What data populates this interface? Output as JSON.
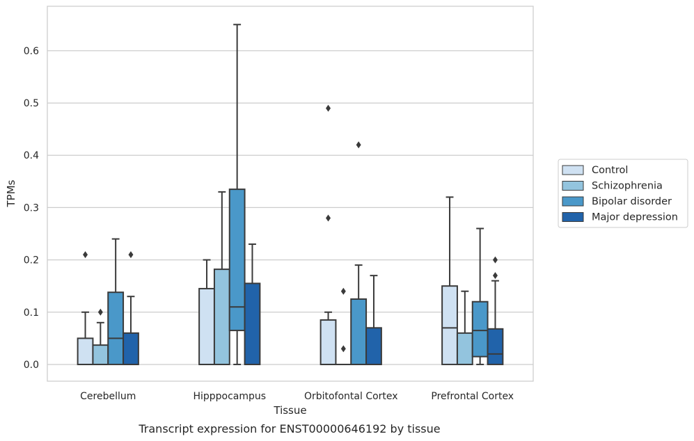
{
  "caption": "Transcript expression for ENST00000646192 by tissue",
  "chart_data": {
    "type": "box",
    "xlabel": "Tissue",
    "ylabel": "TPMs",
    "ylim": [
      -0.032,
      0.685
    ],
    "yticks": [
      0.0,
      0.1,
      0.2,
      0.3,
      0.4,
      0.5,
      0.6
    ],
    "grid": "horizontal",
    "legend_position": "right",
    "categories": [
      "Cerebellum",
      "Hipppocampus",
      "Orbitofontal Cortex",
      "Prefrontal Cortex"
    ],
    "series": [
      {
        "name": "Control",
        "color": "#cfe1f2",
        "boxes": [
          {
            "whislo": 0.0,
            "q1": 0.0,
            "med": 0.0,
            "q3": 0.05,
            "whishi": 0.1,
            "fliers": [
              0.21
            ]
          },
          {
            "whislo": 0.0,
            "q1": 0.0,
            "med": 0.0,
            "q3": 0.145,
            "whishi": 0.2,
            "fliers": []
          },
          {
            "whislo": 0.0,
            "q1": 0.0,
            "med": 0.0,
            "q3": 0.085,
            "whishi": 0.1,
            "fliers": [
              0.28,
              0.49
            ]
          },
          {
            "whislo": 0.0,
            "q1": 0.0,
            "med": 0.07,
            "q3": 0.15,
            "whishi": 0.32,
            "fliers": []
          }
        ]
      },
      {
        "name": "Schizophrenia",
        "color": "#93c4de",
        "boxes": [
          {
            "whislo": 0.0,
            "q1": 0.0,
            "med": 0.0,
            "q3": 0.037,
            "whishi": 0.08,
            "fliers": [
              0.1
            ]
          },
          {
            "whislo": 0.0,
            "q1": 0.0,
            "med": 0.0,
            "q3": 0.182,
            "whishi": 0.33,
            "fliers": []
          },
          {
            "whislo": 0.0,
            "q1": 0.0,
            "med": 0.0,
            "q3": 0.0,
            "whishi": 0.0,
            "fliers": [
              0.03,
              0.14
            ]
          },
          {
            "whislo": 0.0,
            "q1": 0.0,
            "med": 0.0,
            "q3": 0.06,
            "whishi": 0.14,
            "fliers": []
          }
        ]
      },
      {
        "name": "Bipolar disorder",
        "color": "#4a98c9",
        "boxes": [
          {
            "whislo": 0.0,
            "q1": 0.0,
            "med": 0.05,
            "q3": 0.138,
            "whishi": 0.24,
            "fliers": []
          },
          {
            "whislo": 0.0,
            "q1": 0.065,
            "med": 0.11,
            "q3": 0.335,
            "whishi": 0.65,
            "fliers": []
          },
          {
            "whislo": 0.0,
            "q1": 0.0,
            "med": 0.0,
            "q3": 0.125,
            "whishi": 0.19,
            "fliers": [
              0.42
            ]
          },
          {
            "whislo": 0.0,
            "q1": 0.015,
            "med": 0.065,
            "q3": 0.12,
            "whishi": 0.26,
            "fliers": []
          }
        ]
      },
      {
        "name": "Major depression",
        "color": "#2163aa",
        "boxes": [
          {
            "whislo": 0.0,
            "q1": 0.0,
            "med": 0.0,
            "q3": 0.06,
            "whishi": 0.13,
            "fliers": [
              0.21
            ]
          },
          {
            "whislo": 0.0,
            "q1": 0.0,
            "med": 0.0,
            "q3": 0.155,
            "whishi": 0.23,
            "fliers": []
          },
          {
            "whislo": 0.0,
            "q1": 0.0,
            "med": 0.0,
            "q3": 0.07,
            "whishi": 0.17,
            "fliers": []
          },
          {
            "whislo": 0.0,
            "q1": 0.0,
            "med": 0.02,
            "q3": 0.068,
            "whishi": 0.16,
            "fliers": [
              0.17,
              0.2
            ]
          }
        ]
      }
    ]
  }
}
